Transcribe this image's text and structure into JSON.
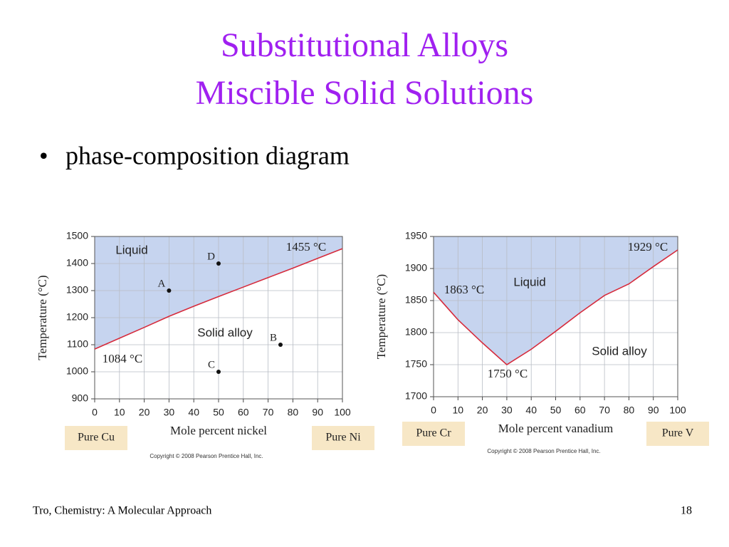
{
  "title": [
    "Substitutional Alloys",
    "Miscible Solid Solutions"
  ],
  "bullet": "phase-composition diagram",
  "footer": {
    "source": "Tro, Chemistry: A Molecular Approach",
    "page": 18
  },
  "chart_data": [
    {
      "type": "line",
      "xlabel": "Mole percent nickel",
      "ylabel": "Temperature (°C)",
      "x": [
        0,
        10,
        20,
        30,
        40,
        50,
        60,
        70,
        80,
        90,
        100
      ],
      "series": [
        {
          "color": "#d62b3c",
          "values": [
            1084,
            1124,
            1164,
            1205,
            1242,
            1278,
            1313,
            1348,
            1383,
            1419,
            1455
          ]
        }
      ],
      "fill_above": "#c6d4ef",
      "xlim": [
        0,
        100
      ],
      "ylim": [
        900,
        1500
      ],
      "xticks": [
        0,
        10,
        20,
        30,
        40,
        50,
        60,
        70,
        80,
        90,
        100
      ],
      "yticks": [
        900,
        1000,
        1100,
        1200,
        1300,
        1400,
        1500
      ],
      "grid": true,
      "points": [
        {
          "label": "D",
          "x": 50,
          "y": 1400
        },
        {
          "label": "A",
          "x": 30,
          "y": 1300
        },
        {
          "label": "B",
          "x": 75,
          "y": 1100
        },
        {
          "label": "C",
          "x": 50,
          "y": 1000
        }
      ],
      "regions": [
        "Liquid",
        "Solid alloy"
      ],
      "annotations": [
        "1455 °C",
        "1084 °C"
      ],
      "ends": [
        "Pure Cu",
        "Pure Ni"
      ],
      "copyright": "Copyright © 2008 Pearson Prentice Hall, Inc."
    },
    {
      "type": "line",
      "xlabel": "Mole percent vanadium",
      "ylabel": "Temperature (°C)",
      "x": [
        0,
        10,
        20,
        30,
        40,
        50,
        60,
        70,
        80,
        90,
        100
      ],
      "series": [
        {
          "color": "#d62b3c",
          "values": [
            1863,
            1820,
            1784,
            1750,
            1774,
            1802,
            1831,
            1858,
            1876,
            1903,
            1929
          ]
        }
      ],
      "fill_above": "#c6d4ef",
      "xlim": [
        0,
        100
      ],
      "ylim": [
        1700,
        1950
      ],
      "xticks": [
        0,
        10,
        20,
        30,
        40,
        50,
        60,
        70,
        80,
        90,
        100
      ],
      "yticks": [
        1700,
        1750,
        1800,
        1850,
        1900,
        1950
      ],
      "grid": true,
      "points": [],
      "regions": [
        "Liquid",
        "Solid alloy"
      ],
      "annotations": [
        "1929 °C",
        "1863 °C",
        "1750 °C"
      ],
      "ends": [
        "Pure Cr",
        "Pure V"
      ],
      "copyright": "Copyright © 2008 Pearson Prentice Hall, Inc."
    }
  ]
}
